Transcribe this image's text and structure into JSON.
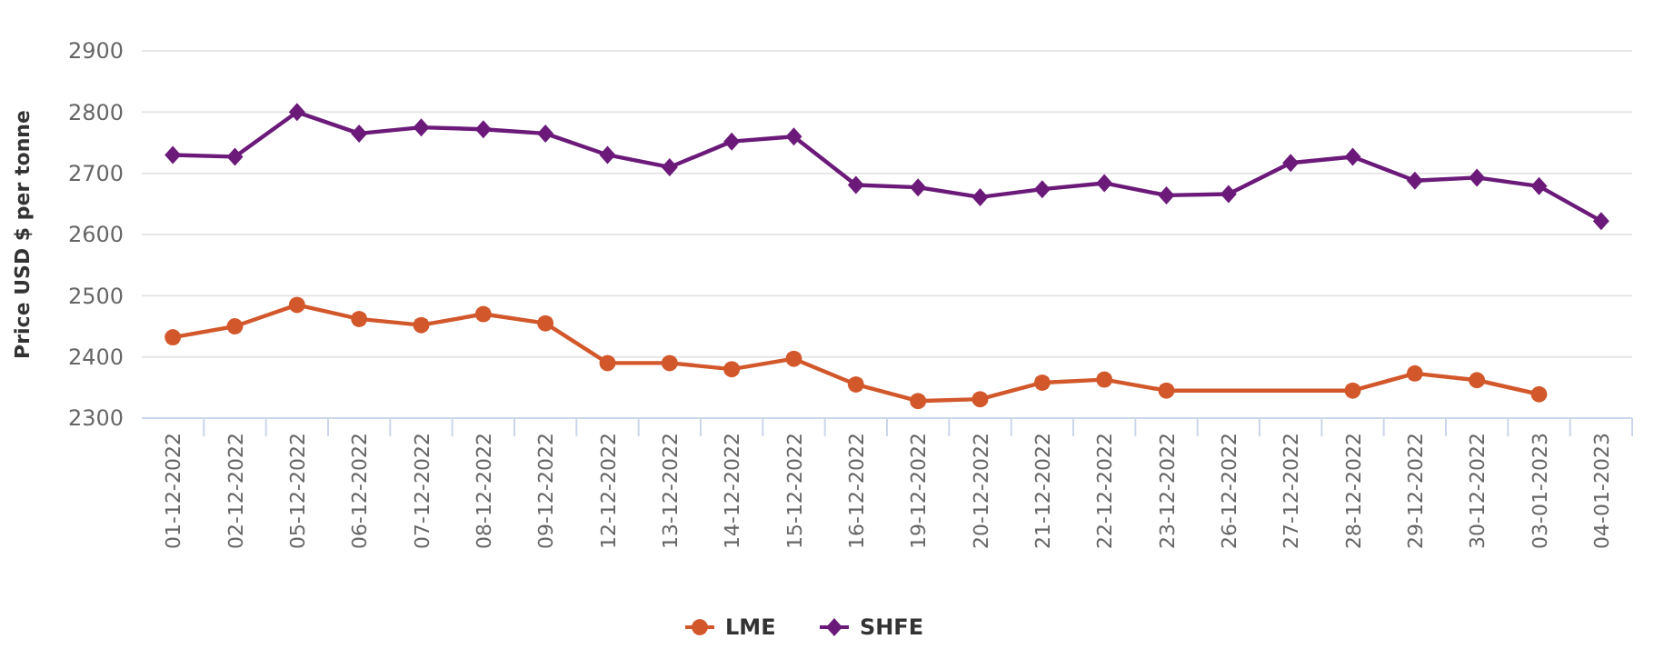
{
  "chart_data": {
    "type": "line",
    "ylabel": "Price USD $ per tonne",
    "categories": [
      "01-12-2022",
      "02-12-2022",
      "05-12-2022",
      "06-12-2022",
      "07-12-2022",
      "08-12-2022",
      "09-12-2022",
      "12-12-2022",
      "13-12-2022",
      "14-12-2022",
      "15-12-2022",
      "16-12-2022",
      "19-12-2022",
      "20-12-2022",
      "21-12-2022",
      "22-12-2022",
      "23-12-2022",
      "26-12-2022",
      "27-12-2022",
      "28-12-2022",
      "29-12-2022",
      "30-12-2022",
      "03-01-2023",
      "04-01-2023"
    ],
    "series": [
      {
        "name": "LME",
        "color": "#d2572b",
        "marker": "circle",
        "values": [
          2432,
          2450,
          2485,
          2462,
          2452,
          2470,
          2455,
          2390,
          2390,
          2380,
          2397,
          2355,
          2328,
          2331,
          2358,
          2363,
          2345,
          null,
          null,
          2345,
          2373,
          2362,
          2339,
          null
        ]
      },
      {
        "name": "SHFE",
        "color": "#6b1a7a",
        "marker": "diamond",
        "values": [
          2730,
          2727,
          2800,
          2765,
          2775,
          2772,
          2765,
          2730,
          2710,
          2752,
          2760,
          2681,
          2677,
          2661,
          2674,
          2684,
          2664,
          2666,
          2717,
          2727,
          2688,
          2693,
          2679,
          2622
        ]
      }
    ],
    "ylim": [
      2300,
      2900
    ],
    "yticks": [
      2300,
      2400,
      2500,
      2600,
      2700,
      2800,
      2900
    ],
    "grid": "y",
    "legend": "bottom",
    "line_style": "solid"
  }
}
